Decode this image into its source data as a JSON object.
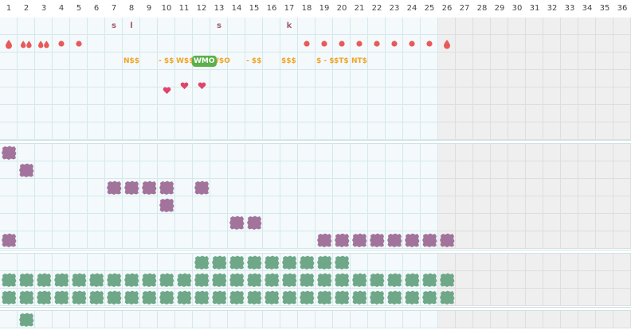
{
  "columns": [
    "1",
    "2",
    "3",
    "4",
    "5",
    "6",
    "7",
    "8",
    "9",
    "10",
    "11",
    "12",
    "13",
    "14",
    "15",
    "16",
    "17",
    "18",
    "19",
    "20",
    "21",
    "22",
    "23",
    "24",
    "25",
    "26",
    "27",
    "28",
    "29",
    "30",
    "31",
    "32",
    "33",
    "34",
    "35",
    "36"
  ],
  "active_columns": 25,
  "colors": {
    "grid_line": "#d4e9ec",
    "active_cell": "#f4f9fb",
    "inactive_cell": "#efefef",
    "letters": "#a25a6a",
    "marks_red": "#e85a5a",
    "marks_pink": "#e0446a",
    "words_orange": "#f0a424",
    "badge_green": "#5bb04a",
    "blob_purple": "#a2749c",
    "blob_green": "#6fa888"
  },
  "top": {
    "letters": [
      {
        "col": 7,
        "text": "s"
      },
      {
        "col": 8,
        "text": "l"
      },
      {
        "col": 13,
        "text": "s"
      },
      {
        "col": 17,
        "text": "k"
      }
    ],
    "marks": [
      {
        "col": 1,
        "icon": "drop-icon"
      },
      {
        "col": 2,
        "icon": "double-drop-icon"
      },
      {
        "col": 3,
        "icon": "double-drop-icon"
      },
      {
        "col": 4,
        "icon": "dot-icon"
      },
      {
        "col": 5,
        "icon": "dot-icon"
      },
      {
        "col": 18,
        "icon": "dot-icon"
      },
      {
        "col": 19,
        "icon": "dot-icon"
      },
      {
        "col": 20,
        "icon": "dot-icon"
      },
      {
        "col": 21,
        "icon": "dot-icon"
      },
      {
        "col": 22,
        "icon": "dot-icon"
      },
      {
        "col": 23,
        "icon": "dot-icon"
      },
      {
        "col": 24,
        "icon": "dot-icon"
      },
      {
        "col": 25,
        "icon": "dot-icon"
      },
      {
        "col": 26,
        "icon": "drop-icon"
      }
    ],
    "words": [
      {
        "col": 8,
        "text": "N$$"
      },
      {
        "col": 10,
        "text": "- $$"
      },
      {
        "col": 11,
        "text": "W$$"
      },
      {
        "col": 13,
        "text": "W$O"
      },
      {
        "col": 15,
        "text": "- $$"
      },
      {
        "col": 17,
        "text": "$$$"
      },
      {
        "col": 19,
        "text": "$ - $"
      },
      {
        "col": 20,
        "text": "$T$"
      },
      {
        "col": 21,
        "text": "NT$"
      }
    ],
    "badge": {
      "col": 12,
      "text": "WMO"
    },
    "hearts": [
      {
        "col": 10,
        "row": 4
      },
      {
        "col": 11,
        "row": 3
      },
      {
        "col": 12,
        "row": 3
      }
    ]
  },
  "section2": {
    "blobs": [
      {
        "col": 1,
        "row": 0
      },
      {
        "col": 2,
        "row": 1
      },
      {
        "col": 7,
        "row": 2
      },
      {
        "col": 8,
        "row": 2
      },
      {
        "col": 9,
        "row": 2
      },
      {
        "col": 10,
        "row": 2
      },
      {
        "col": 12,
        "row": 2
      },
      {
        "col": 10,
        "row": 3
      },
      {
        "col": 14,
        "row": 4
      },
      {
        "col": 15,
        "row": 4
      },
      {
        "col": 1,
        "row": 5
      },
      {
        "col": 19,
        "row": 5
      },
      {
        "col": 20,
        "row": 5
      },
      {
        "col": 21,
        "row": 5
      },
      {
        "col": 22,
        "row": 5
      },
      {
        "col": 23,
        "row": 5
      },
      {
        "col": 24,
        "row": 5
      },
      {
        "col": 25,
        "row": 5
      },
      {
        "col": 26,
        "row": 5
      }
    ]
  },
  "section3": {
    "row0_from": 12,
    "row0_to": 20,
    "row1_from": 1,
    "row1_to": 26,
    "row2_from": 1,
    "row2_to": 26
  },
  "section4": {
    "blobs": [
      {
        "col": 2,
        "row": 0
      }
    ]
  }
}
